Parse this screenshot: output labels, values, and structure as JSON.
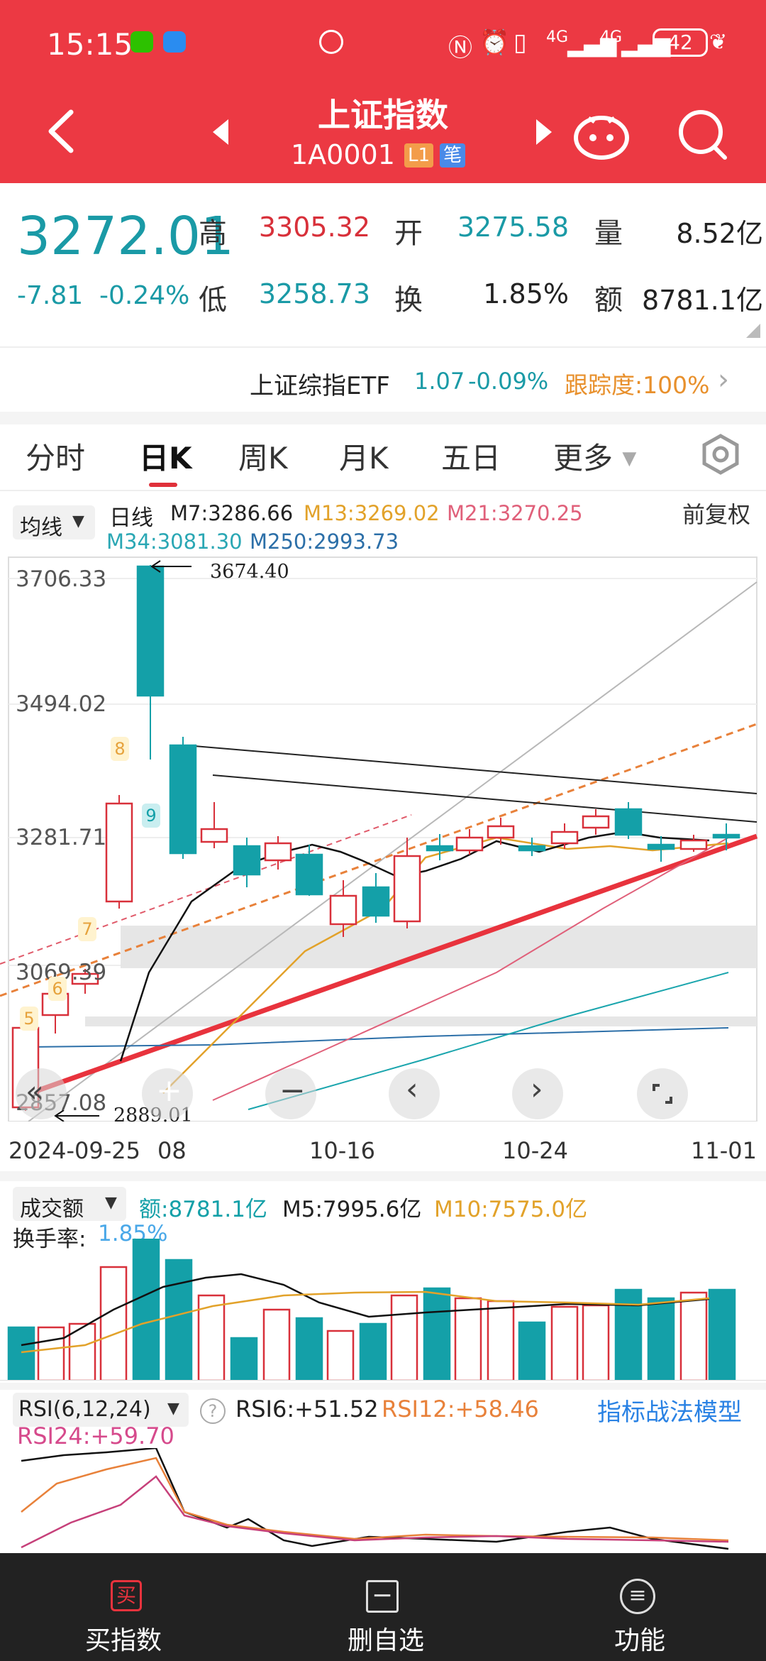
{
  "status_bar": {
    "time": "15:15",
    "net1": "4G",
    "net2": "4G",
    "battery": "42"
  },
  "header": {
    "title": "上证指数",
    "code": "1A0001",
    "badge_level": "L1",
    "badge_pen": "笔"
  },
  "quote": {
    "price": "3272.01",
    "change": "-7.81",
    "change_pct": "-0.24%",
    "high_label": "高",
    "high": "3305.32",
    "open_label": "开",
    "open": "3275.58",
    "vol_label": "量",
    "vol": "8.52亿",
    "low_label": "低",
    "low": "3258.73",
    "turnover_label": "换",
    "turnover": "1.85%",
    "amount_label": "额",
    "amount": "8781.1亿"
  },
  "etf": {
    "name": "上证综指ETF",
    "price": "1.07",
    "change": "-0.09%",
    "tracking": "跟踪度:100%"
  },
  "tabs": [
    "分时",
    "日K",
    "周K",
    "月K",
    "五日",
    "更多"
  ],
  "active_tab": "日K",
  "kline": {
    "ma_selector": "均线",
    "period": "日线",
    "ma7": "M7:3286.66",
    "ma13": "M13:3269.02",
    "ma21": "M21:3270.25",
    "ma34": "M34:3081.30",
    "ma250": "M250:2993.73",
    "adjust": "前复权",
    "y_labels": [
      "3706.33",
      "3494.02",
      "3281.71",
      "3069.39",
      "2857.08"
    ],
    "annot_high": "3674.40",
    "annot_low": "2889.01",
    "x_labels": [
      "2024-09-25",
      "08",
      "10-16",
      "10-24",
      "11-01"
    ],
    "markers": [
      "5",
      "6",
      "7",
      "8",
      "9"
    ]
  },
  "volume": {
    "selector": "成交额",
    "amount": "额:8781.1亿",
    "m5": "M5:7995.6亿",
    "m10": "M10:7575.0亿",
    "turnover_label": "换手率:",
    "turnover_value": "1.85%"
  },
  "rsi": {
    "selector": "RSI(6,12,24)",
    "rsi6": "RSI6:+51.52",
    "rsi12": "RSI12:+58.46",
    "rsi24": "RSI24:+59.70",
    "model_link": "指标战法模型"
  },
  "bottom_nav": {
    "buy_icon": "买",
    "buy": "买指数",
    "delete": "删自选",
    "functions": "功能"
  },
  "colors": {
    "header_red": "#ec3943",
    "up_red": "#d8303a",
    "down_teal": "#14a0a8",
    "ma_orange": "#e2a22a",
    "ma_pink": "#e0607a",
    "ma_blue": "#2c6fa8"
  }
}
